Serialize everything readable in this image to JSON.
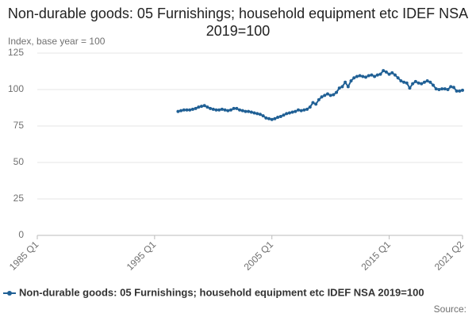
{
  "chart_data": {
    "type": "line",
    "title": "Non-durable goods: 05 Furnishings; household equipment etc IDEF NSA 2019=100",
    "y_label": "Index, base year = 100",
    "source": "Source:",
    "categories": [
      "1985 Q1",
      null,
      null,
      null,
      null,
      null,
      null,
      null,
      null,
      null,
      null,
      null,
      null,
      null,
      null,
      null,
      null,
      null,
      null,
      null,
      null,
      null,
      null,
      null,
      null,
      null,
      null,
      null,
      null,
      null,
      null,
      null,
      null,
      null,
      null,
      null,
      null,
      null,
      null,
      null,
      "1995 Q1",
      null,
      null,
      null,
      null,
      null,
      null,
      null,
      null,
      null,
      null,
      null,
      null,
      null,
      null,
      null,
      null,
      null,
      null,
      null,
      null,
      null,
      null,
      null,
      null,
      null,
      null,
      null,
      null,
      null,
      null,
      null,
      null,
      null,
      null,
      null,
      null,
      null,
      null,
      null,
      "2005 Q1",
      null,
      null,
      null,
      null,
      null,
      null,
      null,
      null,
      null,
      null,
      null,
      null,
      null,
      null,
      null,
      null,
      null,
      null,
      null,
      null,
      null,
      null,
      null,
      null,
      null,
      null,
      null,
      null,
      null,
      null,
      null,
      null,
      null,
      null,
      null,
      null,
      null,
      null,
      null,
      "2015 Q1",
      null,
      null,
      null,
      null,
      null,
      null,
      null,
      null,
      null,
      null,
      null,
      null,
      null,
      null,
      null,
      null,
      null,
      null,
      null,
      null,
      null,
      null,
      null,
      null,
      "2021 Q2"
    ],
    "series": [
      {
        "name": "Non-durable goods: 05 Furnishings; household equipment etc IDEF NSA 2019=100",
        "color": "#206095",
        "values": [
          null,
          null,
          null,
          null,
          null,
          null,
          null,
          null,
          null,
          null,
          null,
          null,
          null,
          null,
          null,
          null,
          null,
          null,
          null,
          null,
          null,
          null,
          null,
          null,
          null,
          null,
          null,
          null,
          null,
          null,
          null,
          null,
          null,
          null,
          null,
          null,
          null,
          null,
          null,
          null,
          null,
          null,
          null,
          null,
          null,
          null,
          null,
          null,
          85,
          85.5,
          86,
          86,
          86,
          86.5,
          87,
          88,
          88.5,
          89,
          88,
          87,
          86.5,
          86,
          86,
          86.5,
          86,
          85.5,
          86,
          87,
          87,
          86,
          85.5,
          85,
          85,
          84.5,
          84,
          83.5,
          83,
          82,
          80.5,
          80,
          79.5,
          80,
          81,
          81.5,
          82.5,
          83.5,
          84,
          84.5,
          85,
          86,
          85.5,
          86,
          86.5,
          88,
          91,
          90,
          93,
          95,
          96,
          97,
          96,
          96.5,
          98,
          101,
          102,
          105,
          102,
          106,
          108,
          109,
          109.5,
          109,
          108.5,
          109.5,
          110,
          109,
          110,
          110.5,
          113,
          112,
          110.5,
          111.5,
          110,
          108,
          106,
          105,
          104.5,
          101,
          104,
          105.5,
          104.5,
          104,
          105,
          106,
          105,
          103,
          100.5,
          100,
          100.5,
          100.5,
          100,
          102,
          101.5,
          99,
          99,
          99.5
        ]
      }
    ],
    "ylim": [
      0,
      125
    ],
    "yticks": [
      0,
      25,
      50,
      75,
      100,
      125
    ],
    "grid": true
  }
}
